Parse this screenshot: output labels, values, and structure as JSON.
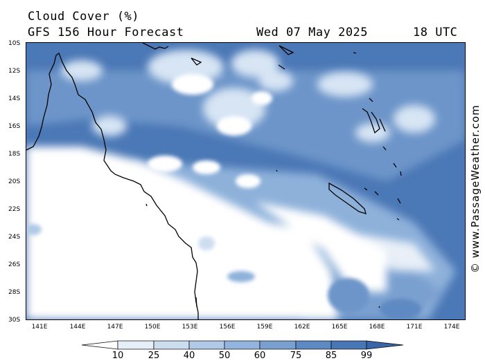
{
  "title": {
    "line1": "Cloud Cover (%)",
    "line2": "GFS 156 Hour Forecast",
    "date": "Wed 07 May 2025",
    "time": "18 UTC"
  },
  "credit": "© www.PassageWeather.com",
  "lat_labels": [
    "10S",
    "12S",
    "14S",
    "16S",
    "18S",
    "20S",
    "22S",
    "24S",
    "26S",
    "28S",
    "30S"
  ],
  "lon_labels": [
    "141E",
    "144E",
    "147E",
    "150E",
    "153E",
    "156E",
    "159E",
    "162E",
    "165E",
    "168E",
    "171E",
    "174E"
  ],
  "legend": {
    "ticks": [
      "10",
      "25",
      "40",
      "50",
      "60",
      "75",
      "85",
      "99"
    ],
    "colors": [
      "#ffffff",
      "#e6eef8",
      "#cdddf0",
      "#b0c9e6",
      "#93b4dc",
      "#7aa0d0",
      "#5f89c2",
      "#4a76b5",
      "#3a66a8"
    ]
  }
}
